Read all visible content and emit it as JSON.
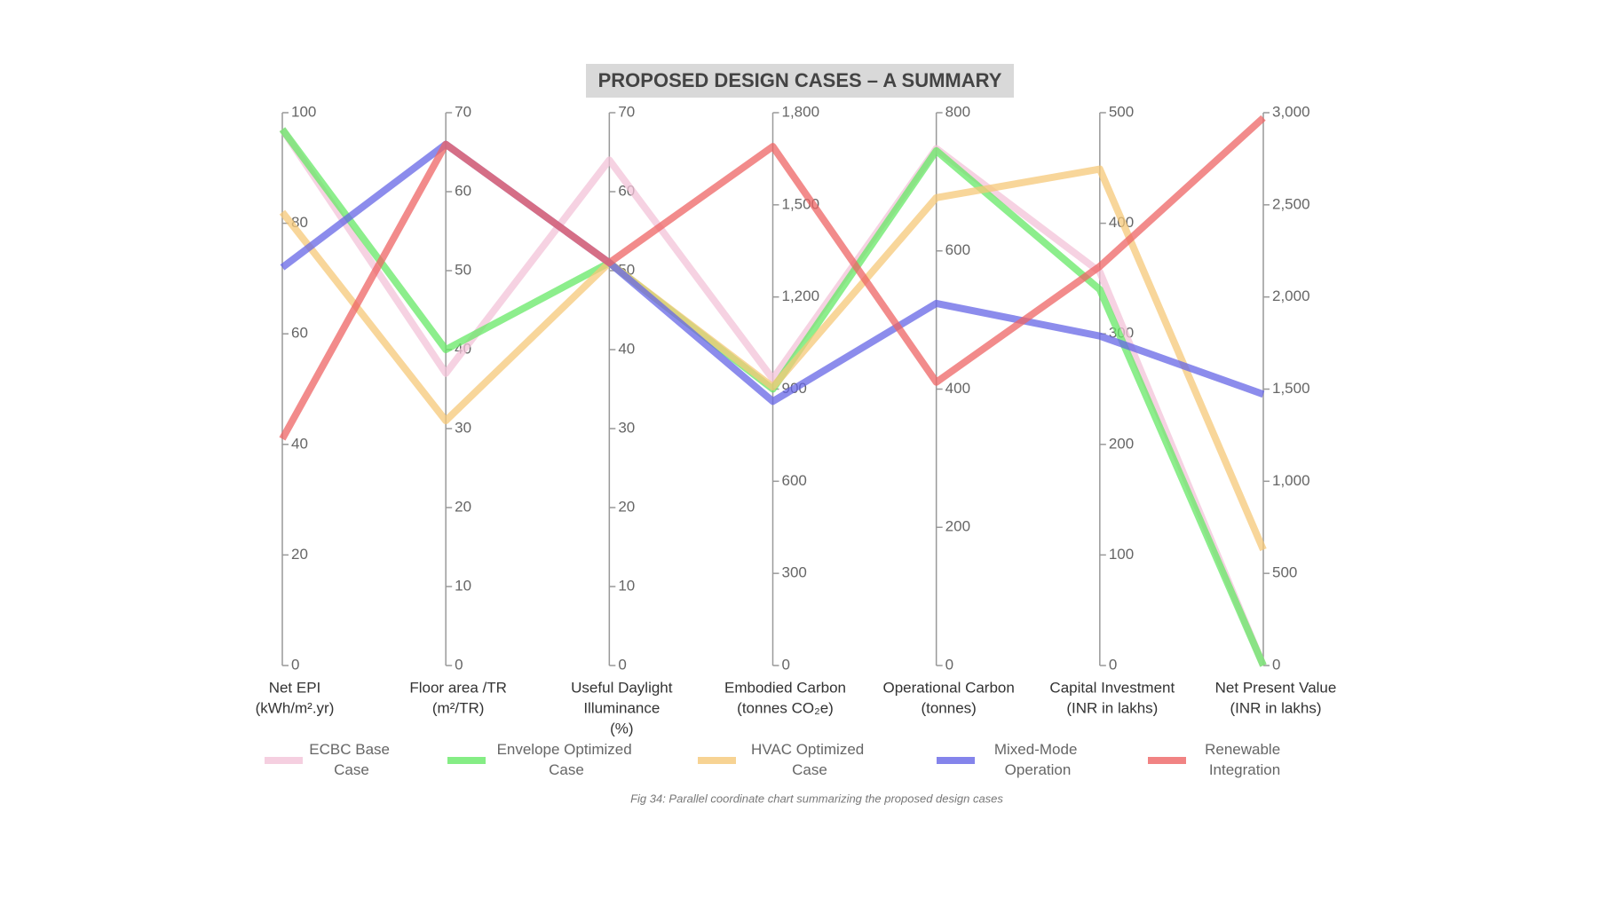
{
  "chart_data": {
    "type": "parallel",
    "title": "PROPOSED DESIGN CASES – A SUMMARY",
    "caption": "Fig 34: Parallel coordinate chart summarizing the proposed design cases",
    "axes": [
      {
        "label": [
          "Net EPI",
          "(kWh/m².yr)"
        ],
        "ylim": [
          0,
          100
        ],
        "yticks": [
          0,
          20,
          40,
          60,
          80,
          100
        ]
      },
      {
        "label": [
          "Floor area /TR",
          "(m²/TR)"
        ],
        "ylim": [
          0,
          70
        ],
        "yticks": [
          0,
          10,
          20,
          30,
          40,
          50,
          60,
          70
        ]
      },
      {
        "label": [
          "Useful Daylight",
          "Illuminance",
          "(%)"
        ],
        "ylim": [
          0,
          70
        ],
        "yticks": [
          0,
          10,
          20,
          30,
          40,
          50,
          60,
          70
        ]
      },
      {
        "label": [
          "Embodied Carbon",
          "(tonnes CO₂e)"
        ],
        "ylim": [
          0,
          1800
        ],
        "yticks": [
          0,
          300,
          600,
          900,
          {
            "value": 1200,
            "label": "1,200"
          },
          {
            "value": 1500,
            "label": "1,500"
          },
          {
            "value": 1800,
            "label": "1,800"
          }
        ]
      },
      {
        "label": [
          "Operational Carbon",
          "(tonnes)"
        ],
        "ylim": [
          0,
          800
        ],
        "yticks": [
          0,
          200,
          400,
          600,
          800
        ]
      },
      {
        "label": [
          "Capital Investment",
          "(INR in lakhs)"
        ],
        "ylim": [
          0,
          500
        ],
        "yticks": [
          0,
          100,
          200,
          300,
          400,
          500
        ]
      },
      {
        "label": [
          "Net Present Value",
          "(INR in lakhs)"
        ],
        "ylim": [
          0,
          3000
        ],
        "yticks": [
          0,
          500,
          {
            "value": 1000,
            "label": "1,000"
          },
          {
            "value": 1500,
            "label": "1,500"
          },
          {
            "value": 2000,
            "label": "2,000"
          },
          {
            "value": 2500,
            "label": "2,500"
          },
          {
            "value": 3000,
            "label": "3,000"
          }
        ]
      }
    ],
    "series": [
      {
        "name": "ECBC Base Case",
        "color": "#f3c3d8",
        "values": [
          97,
          37,
          64,
          933,
          748,
          356,
          0
        ]
      },
      {
        "name": "Envelope Optimized Case",
        "color": "#66e866",
        "values": [
          97,
          40,
          51,
          900,
          745,
          340,
          0
        ]
      },
      {
        "name": "HVAC Optimized Case",
        "color": "#f5c878",
        "values": [
          82,
          31,
          51,
          907,
          677,
          449,
          628
        ]
      },
      {
        "name": "Mixed-Mode Operation",
        "color": "#6565e6",
        "values": [
          72,
          66,
          51,
          860,
          524,
          298,
          1472
        ]
      },
      {
        "name": "Renewable Integration",
        "color": "#ee6464",
        "values": [
          41,
          66,
          51,
          1690,
          410,
          361,
          2972
        ]
      }
    ]
  }
}
